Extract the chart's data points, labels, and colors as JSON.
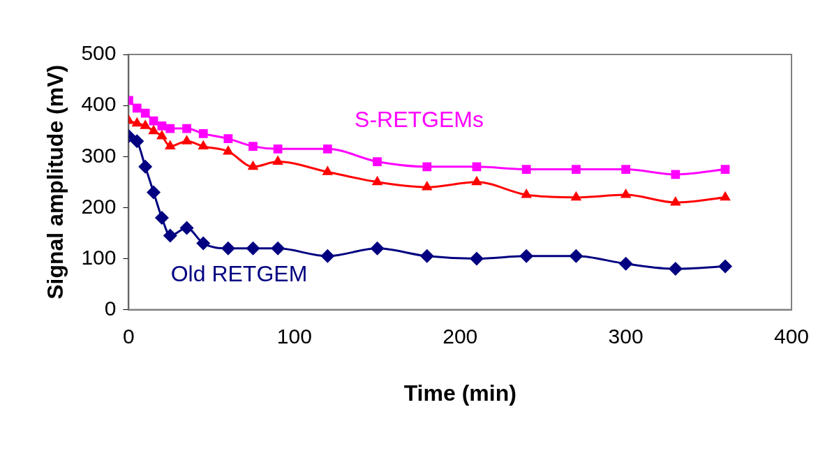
{
  "chart_data": {
    "type": "line",
    "xlabel": "Time (min)",
    "ylabel": "Signal amplitude (mV)",
    "x": [
      0,
      5,
      10,
      15,
      20,
      25,
      35,
      45,
      60,
      75,
      90,
      120,
      150,
      180,
      210,
      240,
      270,
      300,
      330,
      360
    ],
    "series": [
      {
        "name": "S-RETGEMs",
        "color": "#ff00ff",
        "marker": "square",
        "values": [
          410,
          395,
          385,
          370,
          360,
          355,
          355,
          345,
          335,
          320,
          315,
          315,
          290,
          280,
          280,
          275,
          275,
          275,
          265,
          275
        ]
      },
      {
        "color": "#ff0000",
        "marker": "triangle",
        "values": [
          370,
          365,
          360,
          350,
          340,
          320,
          330,
          320,
          310,
          280,
          290,
          270,
          250,
          240,
          250,
          225,
          220,
          225,
          210,
          220
        ]
      },
      {
        "name": "Old RETGEM",
        "color": "#000080",
        "marker": "diamond",
        "values": [
          340,
          330,
          280,
          230,
          180,
          145,
          160,
          130,
          120,
          120,
          120,
          105,
          120,
          105,
          100,
          105,
          105,
          90,
          80,
          85
        ]
      }
    ],
    "xlim": [
      0,
      400
    ],
    "xticks": [
      0,
      100,
      200,
      300,
      400
    ],
    "ylim": [
      0,
      500
    ],
    "yticks": [
      0,
      100,
      200,
      300,
      400,
      500
    ],
    "grid": false,
    "legend": false
  }
}
